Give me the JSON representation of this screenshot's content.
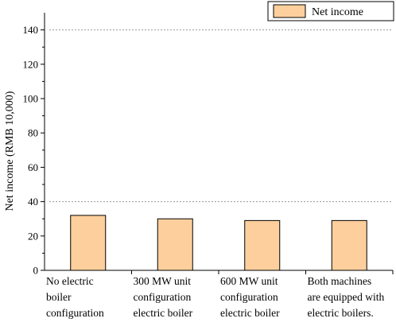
{
  "chart_data": {
    "type": "bar",
    "categories": [
      [
        "No electric",
        "boiler",
        "configuration"
      ],
      [
        "300 MW unit",
        "configuration",
        "electric boiler"
      ],
      [
        "600 MW unit",
        "configuration",
        "electric boiler"
      ],
      [
        "Both machines",
        "are equipped with",
        "electric boilers."
      ]
    ],
    "series": [
      {
        "name": "Net income",
        "values": [
          32,
          30,
          29,
          29
        ]
      }
    ],
    "title": "",
    "xlabel": "",
    "ylabel": "Net income (RMB 10,000)",
    "ylim": [
      0,
      150
    ],
    "yticks": [
      0,
      20,
      40,
      60,
      80,
      100,
      120,
      140
    ],
    "reference_lines": [
      40,
      140
    ],
    "legend_position": "top-right",
    "colors": {
      "bar_fill": "#fdcf9c",
      "bar_stroke": "#000000",
      "reference_line": "#9a9a9a"
    }
  }
}
